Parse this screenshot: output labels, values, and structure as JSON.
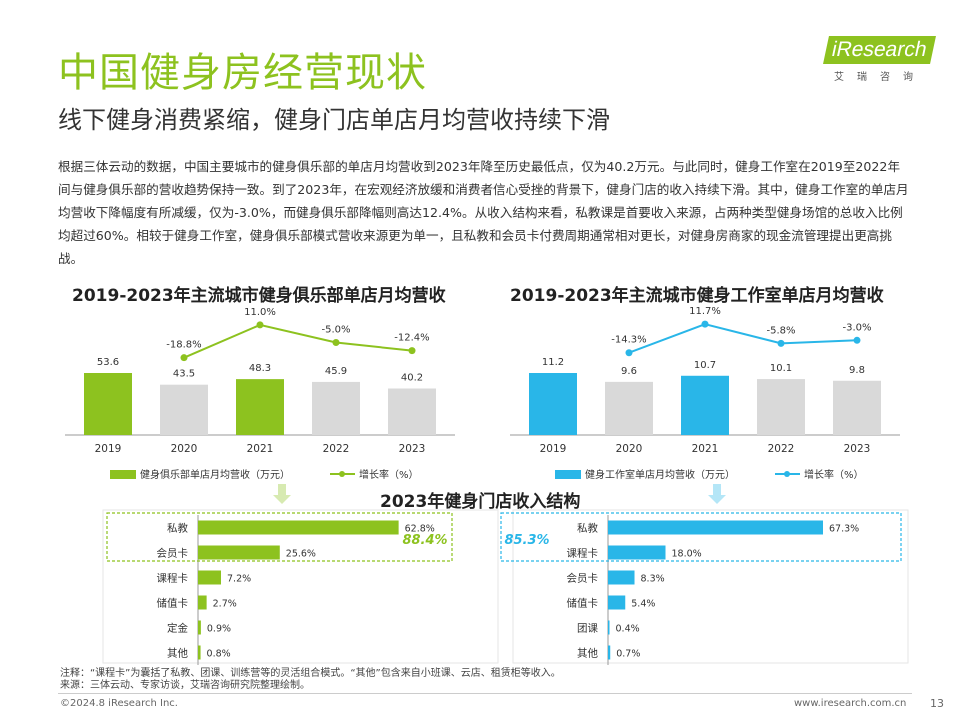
{
  "page": {
    "title": "中国健身房经营现状",
    "subtitle": "线下健身消费紧缩，健身门店单店月均营收持续下滑",
    "body": "根据三体云动的数据，中国主要城市的健身俱乐部的单店月均营收到2023年降至历史最低点，仅为40.2万元。与此同时，健身工作室在2019至2022年间与健身俱乐部的营收趋势保持一致。到了2023年，在宏观经济放缓和消费者信心受挫的背景下，健身门店的收入持续下滑。其中，健身工作室的单店月均营收下降幅度有所减缓，仅为-3.0%，而健身俱乐部降幅则高达12.4%。从收入结构来看，私教课是首要收入来源，占两种类型健身场馆的总收入比例均超过60%。相较于健身工作室，健身俱乐部模式营收来源更为单一，且私教和会员卡付费周期通常相对更长，对健身房商家的现金流管理提出更高挑战。",
    "notes_line1": "注释：“课程卡”为囊括了私教、团课、训练营等的灵活组合模式。“其他”包含来自小班课、云店、租赁柜等收入。",
    "notes_line2": "来源：三体云动、专家访谈，艾瑞咨询研究院整理绘制。",
    "footer_left": "©2024.8 iResearch Inc.",
    "footer_right": "www.iresearch.com.cn",
    "page_number": "13"
  },
  "logo": {
    "brand": "iResearch",
    "cn": "艾瑞咨询"
  },
  "colors": {
    "green": "#8dc21f",
    "blue": "#29b6e8",
    "gray": "#d9d9d9"
  },
  "chart_data": [
    {
      "type": "bar",
      "title": "2019-2023年主流城市健身俱乐部单店月均营收",
      "categories": [
        "2019",
        "2020",
        "2021",
        "2022",
        "2023"
      ],
      "series": [
        {
          "name": "健身俱乐部单店月均营收（万元）",
          "values": [
            53.6,
            43.5,
            48.3,
            45.9,
            40.2
          ]
        },
        {
          "name": "增长率（%）",
          "type": "line",
          "values": [
            null,
            -18.8,
            11.0,
            -5.0,
            -12.4
          ],
          "labels": [
            "",
            "-18.8%",
            "11.0%",
            "-5.0%",
            "-12.4%"
          ]
        }
      ],
      "value_labels": [
        "53.6",
        "43.5",
        "48.3",
        "45.9",
        "40.2"
      ],
      "highlight": [
        0,
        2
      ],
      "legend_position": "bottom"
    },
    {
      "type": "bar",
      "title": "2019-2023年主流城市健身工作室单店月均营收",
      "categories": [
        "2019",
        "2020",
        "2021",
        "2022",
        "2023"
      ],
      "series": [
        {
          "name": "健身工作室单店月均营收（万元）",
          "values": [
            11.2,
            9.6,
            10.7,
            10.1,
            9.8
          ]
        },
        {
          "name": "增长率（%）",
          "type": "line",
          "values": [
            null,
            -14.3,
            11.7,
            -5.8,
            -3.0
          ],
          "labels": [
            "",
            "-14.3%",
            "11.7%",
            "-5.8%",
            "-3.0%"
          ]
        }
      ],
      "value_labels": [
        "11.2",
        "9.6",
        "10.7",
        "10.1",
        "9.8"
      ],
      "highlight": [
        0,
        2
      ],
      "legend_position": "bottom"
    },
    {
      "type": "bar",
      "orientation": "horizontal",
      "title": "2023年健身门店收入结构",
      "panels": [
        {
          "categories": [
            "私教",
            "会员卡",
            "课程卡",
            "储值卡",
            "定金",
            "其他"
          ],
          "values": [
            62.8,
            25.6,
            7.2,
            2.7,
            0.9,
            0.8
          ],
          "labels": [
            "62.8%",
            "25.6%",
            "7.2%",
            "2.7%",
            "0.9%",
            "0.8%"
          ],
          "combined_label": "88.4%"
        },
        {
          "categories": [
            "私教",
            "课程卡",
            "会员卡",
            "储值卡",
            "团课",
            "其他"
          ],
          "values": [
            67.3,
            18.0,
            8.3,
            5.4,
            0.4,
            0.7
          ],
          "labels": [
            "67.3%",
            "18.0%",
            "8.3%",
            "5.4%",
            "0.4%",
            "0.7%"
          ],
          "combined_label": "85.3%"
        }
      ]
    }
  ]
}
